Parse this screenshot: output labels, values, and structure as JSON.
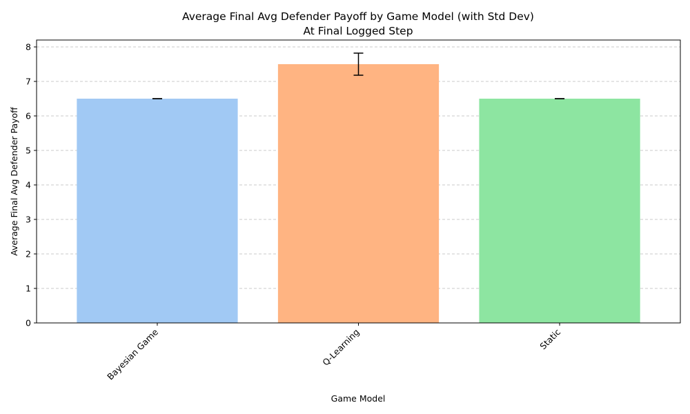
{
  "chart_data": {
    "type": "bar",
    "title": "Average Final Avg Defender Payoff by Game Model (with Std Dev)",
    "subtitle": "At Final Logged Step",
    "xlabel": "Game Model",
    "ylabel": "Average Final Avg Defender Payoff",
    "categories": [
      "Bayesian Game",
      "Q-Learning",
      "Static"
    ],
    "values": [
      6.5,
      7.5,
      6.5
    ],
    "errors": [
      0.0,
      0.32,
      0.0
    ],
    "colors": [
      "#a1c9f4",
      "#ffb482",
      "#8de5a1"
    ],
    "ylim": [
      0,
      8.2
    ],
    "yticks": [
      0,
      1,
      2,
      3,
      4,
      5,
      6,
      7,
      8
    ],
    "grid": "y-dashed",
    "x_tick_rotation": "45"
  }
}
